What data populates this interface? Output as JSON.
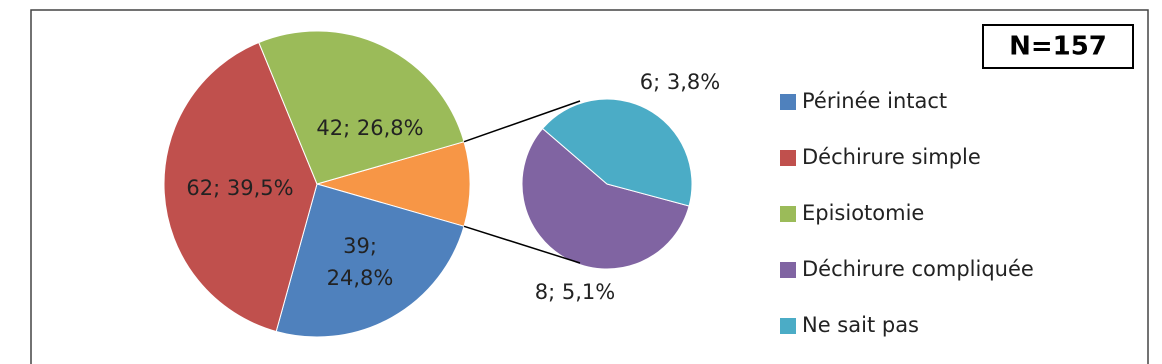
{
  "chart_data": {
    "type": "pie_of_pie",
    "annotation": "N=157",
    "categories": [
      "Périnée intact",
      "Déchirure simple",
      "Episiotomie",
      "Déchirure compliquée",
      "Ne sait pas"
    ],
    "values": [
      39,
      62,
      42,
      8,
      6
    ],
    "value_labels": [
      "39; 24,8%",
      "62; 39,5%",
      "42; 26,8%",
      "8; 5,1%",
      "6; 3,8%"
    ],
    "colors": [
      "#4f81bd",
      "#c0504d",
      "#9bbb59",
      "#8064a2",
      "#4bacc6"
    ],
    "other_color": "#f79646",
    "second_pie_count": 2,
    "legend": "right"
  }
}
